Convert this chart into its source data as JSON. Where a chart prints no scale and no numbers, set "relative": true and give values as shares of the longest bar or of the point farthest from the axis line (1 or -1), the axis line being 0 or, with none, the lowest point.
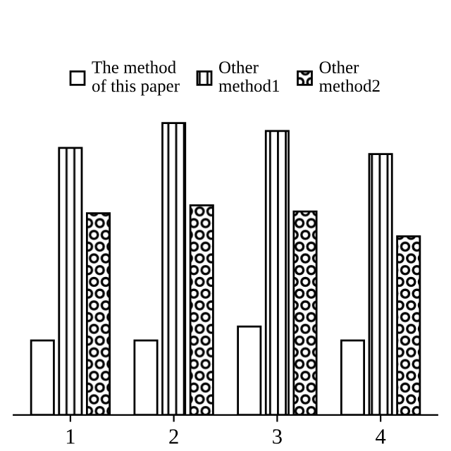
{
  "chart_data": {
    "type": "bar",
    "relative": true,
    "categories": [
      "1",
      "2",
      "3",
      "4"
    ],
    "series": [
      {
        "name": "The method\nof this paper",
        "color": "#000000",
        "values": [
          0.255,
          0.255,
          0.303,
          0.255
        ]
      },
      {
        "name": "Other\nmethod1",
        "color": "#000000",
        "values": [
          0.915,
          1,
          0.973,
          0.894
        ]
      },
      {
        "name": "Other\nmethod2",
        "color": "#000000",
        "values": [
          0.691,
          0.718,
          0.697,
          0.612
        ]
      }
    ],
    "legend": "top",
    "grid": false
  }
}
